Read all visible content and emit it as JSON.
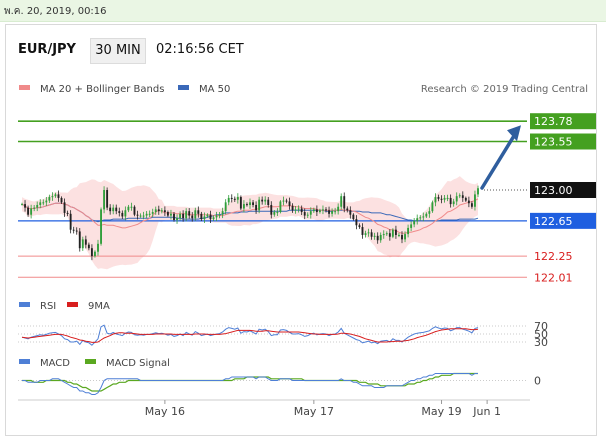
{
  "timestamp": "พ.ค. 20, 2019, 00:16",
  "header": {
    "pair": "EUR/JPY",
    "timeframe": "30 MIN",
    "time": "02:16:56 CET"
  },
  "legend": {
    "ma20": {
      "label": "MA 20 + Bollinger Bands",
      "color": "#f08a8a"
    },
    "ma50": {
      "label": "MA 50",
      "color": "#3a68b8"
    }
  },
  "credit": "Research © 2019 Trading Central",
  "colors": {
    "up": "#2f9e3a",
    "down": "#222222",
    "band": "#fbd7d7",
    "resistance": "#44a020",
    "current": "#111111",
    "support_blue": "#1f5fe0",
    "support_red": "#f08a8a",
    "arrow": "#2f5e9e",
    "rsi": "#4e7fd6",
    "rsi_ma": "#d81e1e",
    "macd": "#4e7fd6",
    "macd_signal": "#5aa820"
  },
  "chart_data": [
    {
      "type": "candlestick",
      "name": "main",
      "ylim": [
        121.9,
        124.1
      ],
      "x_ticks": [
        "May 16",
        "May 17",
        "May 19",
        "Jun 1"
      ],
      "levels": [
        {
          "value": 123.78,
          "label": "123.78",
          "style": "resistance"
        },
        {
          "value": 123.55,
          "label": "123.55",
          "style": "resistance"
        },
        {
          "value": 123.0,
          "label": "123.00",
          "style": "current"
        },
        {
          "value": 122.65,
          "label": "122.65",
          "style": "support_blue"
        },
        {
          "value": 122.25,
          "label": "122.25",
          "style": "support_red"
        },
        {
          "value": 122.01,
          "label": "122.01",
          "style": "support_red"
        }
      ],
      "arrow": {
        "from": 123.0,
        "to": 123.78
      },
      "close": [
        122.84,
        122.8,
        122.72,
        122.79,
        122.8,
        122.83,
        122.86,
        122.86,
        122.88,
        122.92,
        122.93,
        122.95,
        122.91,
        122.86,
        122.74,
        122.73,
        122.55,
        122.54,
        122.53,
        122.34,
        122.44,
        122.38,
        122.34,
        122.25,
        122.3,
        122.39,
        122.78,
        123,
        122.8,
        122.76,
        122.8,
        122.76,
        122.74,
        122.7,
        122.77,
        122.81,
        122.81,
        122.72,
        122.71,
        122.71,
        122.71,
        122.73,
        122.73,
        122.75,
        122.78,
        122.76,
        122.77,
        122.75,
        122.71,
        122.73,
        122.66,
        122.68,
        122.73,
        122.68,
        122.76,
        122.71,
        122.68,
        122.77,
        122.73,
        122.67,
        122.7,
        122.72,
        122.67,
        122.69,
        122.71,
        122.72,
        122.76,
        122.86,
        122.91,
        122.9,
        122.89,
        122.92,
        122.79,
        122.84,
        122.83,
        122.86,
        122.83,
        122.77,
        122.89,
        122.87,
        122.89,
        122.83,
        122.72,
        122.75,
        122.75,
        122.87,
        122.88,
        122.87,
        122.82,
        122.77,
        122.78,
        122.79,
        122.75,
        122.71,
        122.72,
        122.76,
        122.78,
        122.75,
        122.77,
        122.78,
        122.77,
        122.73,
        122.76,
        122.76,
        122.81,
        122.93,
        122.79,
        122.77,
        122.72,
        122.67,
        122.6,
        122.58,
        122.49,
        122.51,
        122.52,
        122.47,
        122.48,
        122.43,
        122.49,
        122.5,
        122.51,
        122.47,
        122.55,
        122.49,
        122.49,
        122.44,
        122.5,
        122.57,
        122.61,
        122.65,
        122.68,
        122.69,
        122.7,
        122.73,
        122.76,
        122.86,
        122.92,
        122.9,
        122.89,
        122.91,
        122.91,
        122.84,
        122.87,
        122.93,
        122.94,
        122.91,
        122.88,
        122.85,
        122.81,
        122.95,
        123.02
      ],
      "ma20": [
        122.84,
        122.82,
        122.79,
        122.79,
        122.79,
        122.8,
        122.8,
        122.81,
        122.82,
        122.83,
        122.84,
        122.85,
        122.85,
        122.85,
        122.84,
        122.83,
        122.81,
        122.8,
        122.78,
        122.76,
        122.74,
        122.71,
        122.69,
        122.66,
        122.63,
        122.6,
        122.6,
        122.61,
        122.6,
        122.6,
        122.6,
        122.59,
        122.58,
        122.57,
        122.57,
        122.58,
        122.59,
        122.6,
        122.61,
        122.63,
        122.65,
        122.66,
        122.68,
        122.71,
        122.75,
        122.77,
        122.76,
        122.74,
        122.74,
        122.74,
        122.74,
        122.73,
        122.73,
        122.73,
        122.73,
        122.72,
        122.72,
        122.72,
        122.72,
        122.72,
        122.72,
        122.72,
        122.72,
        122.71,
        122.71,
        122.71,
        122.71,
        122.72,
        122.73,
        122.74,
        122.75,
        122.76,
        122.76,
        122.77,
        122.77,
        122.77,
        122.78,
        122.78,
        122.79,
        122.8,
        122.81,
        122.81,
        122.81,
        122.81,
        122.81,
        122.82,
        122.82,
        122.82,
        122.82,
        122.82,
        122.81,
        122.81,
        122.8,
        122.79,
        122.79,
        122.79,
        122.79,
        122.78,
        122.77,
        122.77,
        122.77,
        122.77,
        122.77,
        122.77,
        122.77,
        122.78,
        122.77,
        122.77,
        122.77,
        122.76,
        122.75,
        122.73,
        122.71,
        122.69,
        122.68,
        122.66,
        122.64,
        122.61,
        122.6,
        122.58,
        122.57,
        122.55,
        122.55,
        122.54,
        122.52,
        122.51,
        122.51,
        122.52,
        122.52,
        122.53,
        122.54,
        122.55,
        122.57,
        122.58,
        122.6,
        122.62,
        122.65,
        122.67,
        122.69,
        122.72,
        122.75,
        122.76,
        122.78,
        122.8,
        122.83,
        122.84,
        122.85,
        122.86,
        122.87,
        122.88,
        122.9
      ],
      "ma50": [
        122.84,
        122.82,
        122.79,
        122.79,
        122.79,
        122.8,
        122.8,
        122.81,
        122.82,
        122.83,
        122.84,
        122.85,
        122.85,
        122.85,
        122.84,
        122.83,
        122.81,
        122.8,
        122.78,
        122.76,
        122.74,
        122.71,
        122.69,
        122.66,
        122.65,
        122.64,
        122.65,
        122.66,
        122.66,
        122.66,
        122.67,
        122.67,
        122.67,
        122.67,
        122.67,
        122.68,
        122.68,
        122.68,
        122.68,
        122.68,
        122.68,
        122.68,
        122.68,
        122.69,
        122.69,
        122.69,
        122.69,
        122.69,
        122.69,
        122.69,
        122.69,
        122.68,
        122.68,
        122.67,
        122.67,
        122.67,
        122.67,
        122.67,
        122.67,
        122.68,
        122.68,
        122.69,
        122.7,
        122.71,
        122.72,
        122.72,
        122.73,
        122.74,
        122.74,
        122.74,
        122.74,
        122.74,
        122.75,
        122.75,
        122.75,
        122.76,
        122.76,
        122.76,
        122.76,
        122.76,
        122.76,
        122.76,
        122.76,
        122.76,
        122.76,
        122.76,
        122.76,
        122.76,
        122.77,
        122.77,
        122.77,
        122.77,
        122.77,
        122.77,
        122.77,
        122.77,
        122.77,
        122.77,
        122.77,
        122.77,
        122.76,
        122.76,
        122.76,
        122.77,
        122.77,
        122.77,
        122.77,
        122.77,
        122.76,
        122.76,
        122.76,
        122.76,
        122.75,
        122.75,
        122.75,
        122.74,
        122.74,
        122.74,
        122.74,
        122.73,
        122.72,
        122.72,
        122.71,
        122.7,
        122.69,
        122.68,
        122.67,
        122.66,
        122.66,
        122.65,
        122.65,
        122.65,
        122.65,
        122.65,
        122.65,
        122.65,
        122.65,
        122.65,
        122.66,
        122.66,
        122.66,
        122.66,
        122.66,
        122.66,
        122.67,
        122.67,
        122.67,
        122.67,
        122.67,
        122.67,
        122.68
      ]
    },
    {
      "type": "line",
      "name": "rsi",
      "legend": [
        "RSI",
        "9MA"
      ],
      "levels": [
        70,
        50,
        30
      ],
      "level_labels": [
        "70",
        "50",
        "30"
      ],
      "ylim": [
        10,
        90
      ],
      "rsi": [
        42,
        40,
        38,
        42,
        44,
        46,
        48,
        47,
        49,
        52,
        53,
        54,
        50,
        46,
        38,
        36,
        30,
        30,
        32,
        24,
        34,
        30,
        28,
        22,
        30,
        38,
        68,
        72,
        52,
        50,
        54,
        50,
        48,
        46,
        52,
        55,
        54,
        48,
        47,
        48,
        47,
        49,
        49,
        51,
        53,
        51,
        52,
        50,
        47,
        49,
        44,
        46,
        50,
        46,
        54,
        50,
        47,
        56,
        52,
        46,
        48,
        50,
        46,
        48,
        50,
        51,
        55,
        62,
        66,
        64,
        62,
        65,
        52,
        56,
        55,
        58,
        54,
        50,
        62,
        60,
        62,
        56,
        46,
        48,
        48,
        60,
        61,
        59,
        54,
        50,
        50,
        51,
        48,
        44,
        46,
        50,
        52,
        48,
        50,
        51,
        50,
        46,
        49,
        50,
        55,
        64,
        52,
        48,
        44,
        40,
        36,
        34,
        28,
        30,
        32,
        28,
        30,
        26,
        32,
        33,
        34,
        30,
        38,
        34,
        34,
        30,
        36,
        42,
        46,
        50,
        52,
        53,
        54,
        56,
        58,
        64,
        68,
        65,
        63,
        65,
        64,
        58,
        61,
        66,
        66,
        62,
        60,
        57,
        53,
        64,
        66
      ],
      "rsi_ma": [
        42,
        41,
        40,
        41,
        42,
        43,
        44,
        45,
        46,
        47,
        48,
        49,
        49,
        49,
        47,
        45,
        42,
        40,
        38,
        35,
        34,
        32,
        31,
        29,
        29,
        30,
        35,
        40,
        43,
        46,
        50,
        52,
        53,
        53,
        52,
        52,
        52,
        51,
        50,
        49,
        49,
        49,
        49,
        49,
        50,
        50,
        50,
        50,
        50,
        50,
        49,
        49,
        49,
        49,
        49,
        49,
        49,
        50,
        50,
        50,
        50,
        49,
        49,
        49,
        49,
        49,
        50,
        51,
        53,
        55,
        57,
        59,
        59,
        59,
        59,
        59,
        58,
        57,
        57,
        57,
        58,
        58,
        57,
        56,
        55,
        55,
        55,
        55,
        55,
        55,
        55,
        55,
        54,
        53,
        52,
        51,
        50,
        50,
        49,
        49,
        49,
        49,
        49,
        49,
        50,
        52,
        52,
        51,
        50,
        48,
        46,
        44,
        41,
        38,
        36,
        34,
        32,
        30,
        30,
        30,
        30,
        31,
        31,
        32,
        32,
        32,
        33,
        34,
        36,
        38,
        41,
        43,
        45,
        47,
        50,
        53,
        56,
        58,
        60,
        61,
        62,
        63,
        63,
        63,
        63,
        63,
        63,
        62,
        61,
        61,
        62
      ]
    },
    {
      "type": "line",
      "name": "macd",
      "legend": [
        "MACD",
        "MACD Signal"
      ],
      "zero_label": "0",
      "ylim": [
        -0.1,
        0.06
      ],
      "macd": [
        0,
        0,
        -0.01,
        -0.01,
        -0.01,
        -0.01,
        0,
        0,
        0,
        0,
        0.01,
        0.01,
        0.01,
        0,
        -0.01,
        -0.02,
        -0.03,
        -0.04,
        -0.04,
        -0.06,
        -0.06,
        -0.07,
        -0.07,
        -0.08,
        -0.08,
        -0.07,
        -0.04,
        0,
        0.01,
        0.01,
        0.01,
        0.01,
        0.01,
        0.01,
        0.01,
        0.01,
        0.01,
        0.01,
        0.01,
        0,
        0,
        0,
        0,
        0,
        0,
        0,
        0,
        0,
        0,
        0,
        0,
        0,
        0,
        0,
        0,
        0,
        0,
        0,
        0,
        0,
        0,
        0,
        0,
        0,
        0,
        0,
        0,
        0.01,
        0.01,
        0.02,
        0.02,
        0.02,
        0.02,
        0.02,
        0.02,
        0.02,
        0.02,
        0.01,
        0.02,
        0.02,
        0.02,
        0.01,
        0,
        0,
        0,
        0.01,
        0.01,
        0.01,
        0.01,
        0,
        0,
        0,
        0,
        0,
        0,
        0,
        0,
        0,
        0,
        0,
        0,
        0,
        0,
        0,
        0,
        0.01,
        0,
        0,
        0,
        -0.01,
        -0.01,
        -0.02,
        -0.03,
        -0.03,
        -0.03,
        -0.03,
        -0.04,
        -0.04,
        -0.04,
        -0.04,
        -0.03,
        -0.03,
        -0.03,
        -0.03,
        -0.03,
        -0.03,
        -0.02,
        -0.01,
        0,
        0,
        0.01,
        0.01,
        0.02,
        0.02,
        0.03,
        0.03,
        0.04,
        0.04,
        0.04,
        0.04,
        0.04,
        0.04,
        0.04,
        0.04,
        0.04,
        0.04,
        0.04,
        0.04,
        0.03,
        0.04,
        0.04
      ],
      "signal": [
        0,
        0,
        0,
        0,
        -0.01,
        -0.01,
        -0.01,
        -0.01,
        0,
        0,
        0,
        0,
        0,
        0,
        0,
        -0.01,
        -0.01,
        -0.02,
        -0.02,
        -0.03,
        -0.04,
        -0.04,
        -0.05,
        -0.06,
        -0.06,
        -0.06,
        -0.06,
        -0.05,
        -0.04,
        -0.03,
        -0.02,
        -0.02,
        -0.01,
        -0.01,
        -0.01,
        0,
        0,
        0,
        0,
        0,
        0,
        0,
        0,
        0,
        0,
        0,
        0,
        0,
        0,
        0,
        0,
        0,
        0,
        0,
        0,
        0,
        0,
        0,
        0,
        0,
        0,
        0,
        0,
        0,
        0,
        0,
        0,
        0,
        0,
        0,
        0.01,
        0.01,
        0.01,
        0.01,
        0.02,
        0.02,
        0.02,
        0.02,
        0.02,
        0.02,
        0.02,
        0.02,
        0.01,
        0.01,
        0.01,
        0.01,
        0.01,
        0.01,
        0.01,
        0.01,
        0.01,
        0.01,
        0.01,
        0,
        0,
        0,
        0,
        0,
        0,
        0,
        0,
        0,
        0,
        0,
        0,
        0,
        0,
        0,
        0,
        0,
        0,
        -0.01,
        -0.01,
        -0.01,
        -0.02,
        -0.02,
        -0.02,
        -0.02,
        -0.03,
        -0.03,
        -0.03,
        -0.03,
        -0.03,
        -0.03,
        -0.03,
        -0.03,
        -0.03,
        -0.02,
        -0.02,
        -0.02,
        -0.01,
        -0.01,
        0,
        0,
        0.01,
        0.01,
        0.02,
        0.02,
        0.03,
        0.03,
        0.03,
        0.03,
        0.04,
        0.04,
        0.04,
        0.04,
        0.04,
        0.04,
        0.04,
        0.04,
        0.04
      ]
    }
  ]
}
